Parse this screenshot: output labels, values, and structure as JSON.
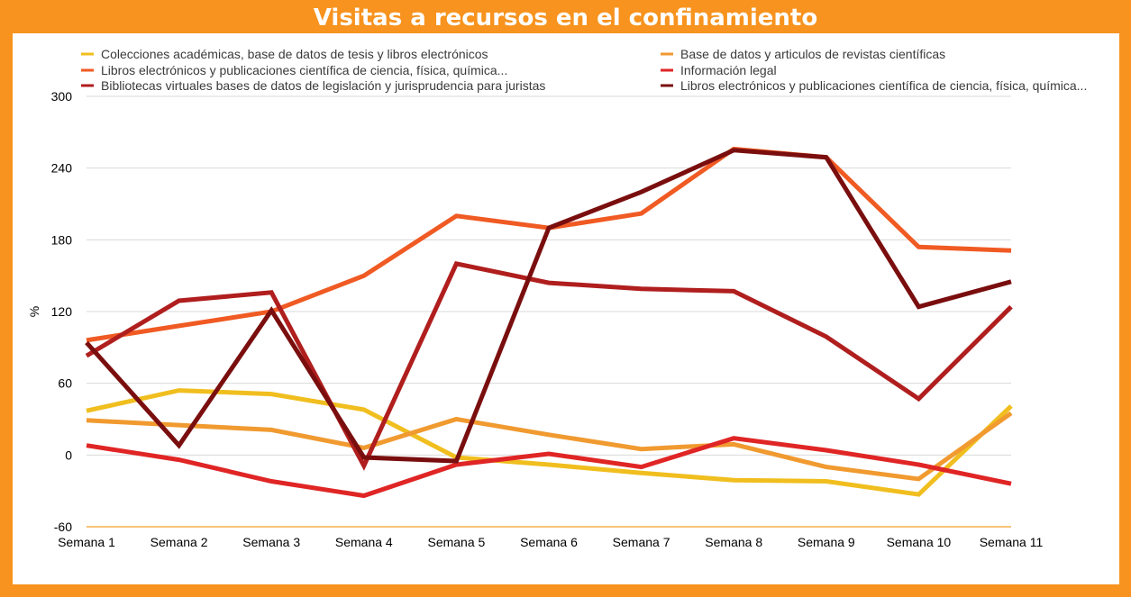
{
  "title": "Visitas a recursos en el confinamiento",
  "chart_data": {
    "type": "line",
    "title": "Visitas a recursos en el confinamiento",
    "xlabel": "",
    "ylabel": "%",
    "ylim": [
      -60,
      300
    ],
    "yticks": [
      -60,
      0,
      60,
      120,
      180,
      240,
      300
    ],
    "grid": true,
    "legend_position": "top",
    "categories": [
      "Semana 1",
      "Semana 2",
      "Semana 3",
      "Semana 4",
      "Semana 5",
      "Semana 6",
      "Semana 7",
      "Semana 8",
      "Semana 9",
      "Semana 10",
      "Semana 11"
    ],
    "series": [
      {
        "name": "Colecciones académicas, base de datos de tesis y libros electrónicos",
        "color": "#F0BE1E",
        "values": [
          37,
          54,
          51,
          38,
          -2,
          -8,
          -15,
          -21,
          -22,
          -33,
          41
        ]
      },
      {
        "name": "Base de datos y articulos de revistas científicas",
        "color": "#F09A30",
        "values": [
          29,
          25,
          21,
          6,
          30,
          17,
          5,
          9,
          -10,
          -20,
          35
        ]
      },
      {
        "name": "Libros electrónicos y publicaciones científica de ciencia, física, química...",
        "color": "#F05A23",
        "values": [
          96,
          108,
          120,
          150,
          200,
          190,
          202,
          256,
          249,
          174,
          171
        ]
      },
      {
        "name": "Información legal",
        "color": "#E02525",
        "values": [
          8,
          -4,
          -22,
          -34,
          -8,
          1,
          -10,
          14,
          4,
          -8,
          -24
        ]
      },
      {
        "name": "Bibliotecas virtuales bases de datos de legislación y jurisprudencia para juristas",
        "color": "#B01E1E",
        "values": [
          83,
          129,
          136,
          -9,
          160,
          144,
          139,
          137,
          99,
          47,
          124
        ]
      },
      {
        "name": "Libros electrónicos y publicaciones científica de ciencia, física, química...",
        "color": "#7A0E0E",
        "values": [
          94,
          8,
          121,
          -2,
          -5,
          190,
          220,
          255,
          249,
          124,
          145
        ]
      }
    ]
  }
}
